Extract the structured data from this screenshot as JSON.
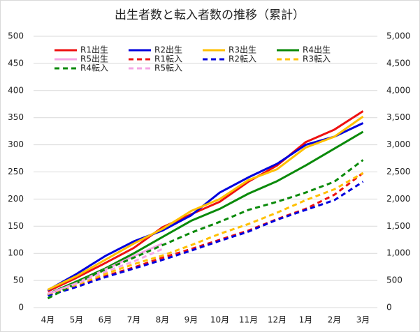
{
  "chart_data": {
    "type": "line",
    "title": "出生者数と転入者数の推移（累計）",
    "categories": [
      "4月",
      "5月",
      "6月",
      "7月",
      "8月",
      "9月",
      "10月",
      "11月",
      "12月",
      "1月",
      "2月",
      "3月"
    ],
    "ylim": [
      0,
      500
    ],
    "yticks": [
      0,
      50,
      100,
      150,
      200,
      250,
      300,
      350,
      400,
      450,
      500
    ],
    "y2lim": [
      0,
      5000
    ],
    "y2ticks": [
      0,
      500,
      {
        "value": 1000,
        "label": "1,000"
      },
      {
        "value": 1500,
        "label": "1,500"
      },
      {
        "value": 2000,
        "label": "2,000"
      },
      {
        "value": 2500,
        "label": "2,500"
      },
      {
        "value": 3000,
        "label": "3,000"
      },
      {
        "value": 3500,
        "label": "3,500"
      },
      {
        "value": 4000,
        "label": "4,000"
      },
      {
        "value": 4500,
        "label": "4,500"
      },
      {
        "value": 5000,
        "label": "5,000"
      }
    ],
    "grid": true,
    "legend": "top",
    "series": [
      {
        "name": "R1出生",
        "color": "#ee1111",
        "dashed": false,
        "values": [
          30,
          55,
          82,
          110,
          148,
          172,
          195,
          232,
          262,
          305,
          328,
          362
        ]
      },
      {
        "name": "R2出生",
        "color": "#0000dd",
        "dashed": false,
        "values": [
          32,
          62,
          95,
          122,
          142,
          170,
          212,
          240,
          265,
          300,
          315,
          340
        ]
      },
      {
        "name": "R3出生",
        "color": "#ffc000",
        "dashed": false,
        "values": [
          33,
          58,
          88,
          118,
          145,
          178,
          200,
          235,
          255,
          295,
          315,
          352
        ]
      },
      {
        "name": "R4出生",
        "color": "#0a8a0a",
        "dashed": false,
        "values": [
          25,
          48,
          72,
          100,
          130,
          160,
          182,
          210,
          233,
          262,
          293,
          324
        ]
      },
      {
        "name": "R5出生",
        "color": "#f4a6e6",
        "dashed": false,
        "values": [
          25,
          45,
          70,
          95,
          118,
          null,
          null,
          null,
          null,
          null,
          null,
          null
        ]
      },
      {
        "name": "R1転入",
        "color": "#ee1111",
        "dashed": true,
        "axis": "y2",
        "values": [
          230,
          400,
          580,
          740,
          920,
          1080,
          1250,
          1420,
          1630,
          1820,
          2080,
          2480
        ]
      },
      {
        "name": "R2転入",
        "color": "#0000dd",
        "dashed": true,
        "axis": "y2",
        "values": [
          220,
          380,
          560,
          720,
          880,
          1050,
          1230,
          1400,
          1620,
          1800,
          1980,
          2320
        ]
      },
      {
        "name": "R3転入",
        "color": "#ffc000",
        "dashed": true,
        "axis": "y2",
        "values": [
          250,
          420,
          620,
          800,
          960,
          1150,
          1360,
          1540,
          1750,
          1980,
          2180,
          2480
        ]
      },
      {
        "name": "R4転入",
        "color": "#0a8a0a",
        "dashed": true,
        "axis": "y2",
        "values": [
          170,
          450,
          700,
          920,
          1150,
          1380,
          1580,
          1800,
          1950,
          2120,
          2320,
          2720
        ]
      },
      {
        "name": "R5転入",
        "color": "#f4a6e6",
        "dashed": true,
        "axis": "y2",
        "values": [
          260,
          440,
          660,
          850,
          1080,
          null,
          null,
          null,
          null,
          null,
          null,
          null
        ]
      }
    ]
  }
}
